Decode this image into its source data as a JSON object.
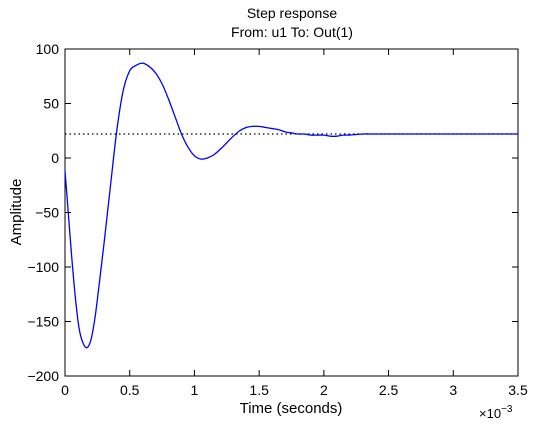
{
  "chart_data": {
    "type": "line",
    "title": "Step response",
    "subtitle": "From: u1  To: Out(1)",
    "xlabel": "Time (seconds)",
    "ylabel": "Amplitude",
    "x_multiplier_base": "×10",
    "x_multiplier_exponent": "−3",
    "xlim": [
      0,
      3.5
    ],
    "ylim": [
      -200,
      100
    ],
    "grid": false,
    "x_ticks": [
      0,
      0.5,
      1,
      1.5,
      2,
      2.5,
      3,
      3.5
    ],
    "x_tick_labels": [
      "0",
      "0.5",
      "1",
      "1.5",
      "2",
      "2.5",
      "3",
      "3.5"
    ],
    "y_ticks": [
      -200,
      -150,
      -100,
      -50,
      0,
      50,
      100
    ],
    "y_tick_labels": [
      "−200",
      "−150",
      "−100",
      "−50",
      "0",
      "50",
      "100"
    ],
    "steady_state": {
      "value": 22,
      "style": "dotted",
      "color": "#000000"
    },
    "series": [
      {
        "color": "#0000ff",
        "x": [
          0,
          0.02,
          0.05,
          0.08,
          0.11,
          0.14,
          0.17,
          0.2,
          0.23,
          0.26,
          0.3,
          0.35,
          0.4,
          0.45,
          0.5,
          0.55,
          0.6,
          0.65,
          0.7,
          0.75,
          0.8,
          0.85,
          0.9,
          0.95,
          1.0,
          1.05,
          1.1,
          1.15,
          1.2,
          1.25,
          1.3,
          1.35,
          1.4,
          1.45,
          1.5,
          1.55,
          1.6,
          1.65,
          1.7,
          1.75,
          1.8,
          1.85,
          1.9,
          1.95,
          2.0,
          2.05,
          2.1,
          2.15,
          2.2,
          2.3,
          2.4,
          2.5,
          2.6,
          2.7,
          2.8,
          2.9,
          3.0,
          3.1,
          3.2,
          3.3,
          3.4,
          3.5
        ],
        "y": [
          -12,
          -42,
          -88,
          -128,
          -157,
          -170,
          -174,
          -167,
          -148,
          -120,
          -80,
          -27,
          25,
          62,
          80,
          85,
          87,
          84,
          78,
          68,
          54,
          38,
          22,
          10,
          2,
          -1,
          0,
          3,
          8,
          14,
          20,
          25,
          28,
          29,
          29,
          28,
          27,
          26,
          24,
          23,
          22,
          22,
          21,
          21,
          21,
          20,
          20,
          21,
          21,
          22,
          22,
          22,
          22,
          22,
          22,
          22,
          22,
          22,
          22,
          22,
          22,
          22
        ]
      }
    ]
  }
}
